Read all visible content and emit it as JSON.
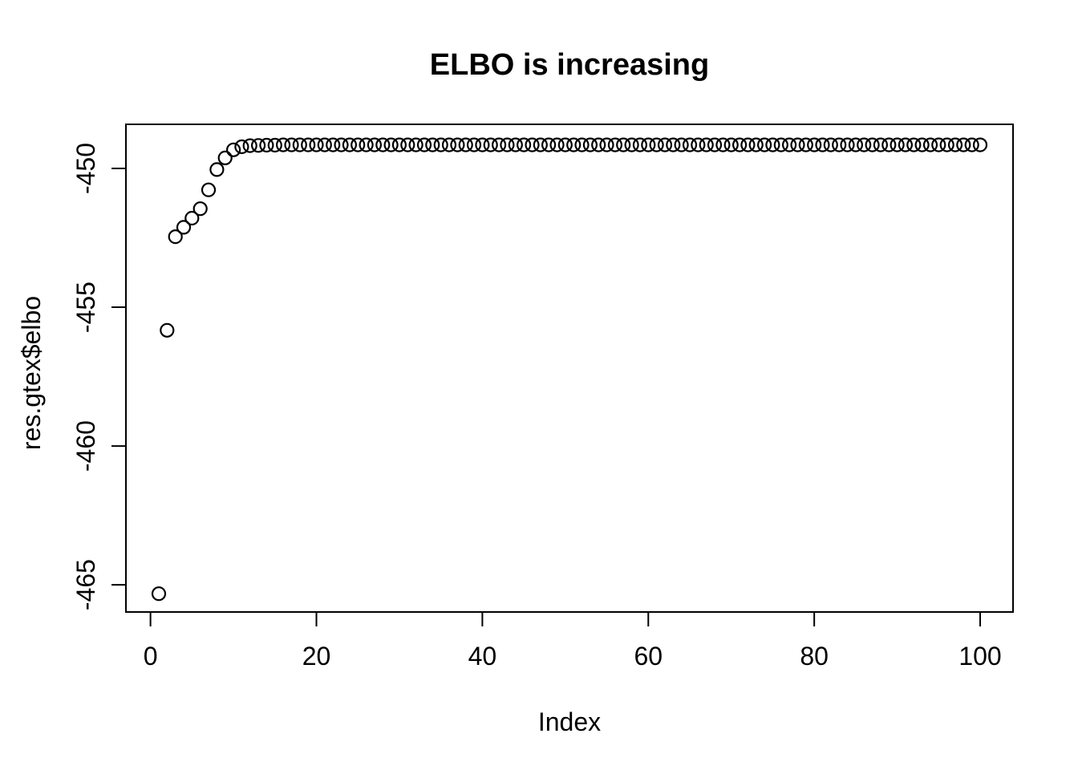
{
  "colors": {
    "foreground": "#000000",
    "background": "#ffffff"
  },
  "chart_data": {
    "type": "scatter",
    "title": "ELBO is increasing",
    "xlabel": "Index",
    "ylabel": "res.gtex$elbo",
    "point_style": "open-circle",
    "legend": "none",
    "grid": false,
    "x_ticks": [
      0,
      20,
      40,
      60,
      80,
      100
    ],
    "y_ticks": [
      -450,
      -455,
      -460,
      -465
    ],
    "xlim": [
      -2.96,
      103.96
    ],
    "ylim": [
      -465.98,
      -448.41
    ],
    "x": [
      1,
      2,
      3,
      4,
      5,
      6,
      7,
      8,
      9,
      10,
      11,
      12,
      13,
      14,
      15,
      16,
      17,
      18,
      19,
      20,
      21,
      22,
      23,
      24,
      25,
      26,
      27,
      28,
      29,
      30,
      31,
      32,
      33,
      34,
      35,
      36,
      37,
      38,
      39,
      40,
      41,
      42,
      43,
      44,
      45,
      46,
      47,
      48,
      49,
      50,
      51,
      52,
      53,
      54,
      55,
      56,
      57,
      58,
      59,
      60,
      61,
      62,
      63,
      64,
      65,
      66,
      67,
      68,
      69,
      70,
      71,
      72,
      73,
      74,
      75,
      76,
      77,
      78,
      79,
      80,
      81,
      82,
      83,
      84,
      85,
      86,
      87,
      88,
      89,
      90,
      91,
      92,
      93,
      94,
      95,
      96,
      97,
      98,
      99,
      100
    ],
    "y": [
      -465.32,
      -455.83,
      -452.46,
      -452.12,
      -451.79,
      -451.45,
      -450.77,
      -450.04,
      -449.62,
      -449.33,
      -449.22,
      -449.18,
      -449.17,
      -449.16,
      -449.16,
      -449.15,
      -449.15,
      -449.15,
      -449.15,
      -449.15,
      -449.15,
      -449.15,
      -449.15,
      -449.15,
      -449.15,
      -449.15,
      -449.15,
      -449.15,
      -449.15,
      -449.15,
      -449.15,
      -449.15,
      -449.15,
      -449.15,
      -449.15,
      -449.15,
      -449.15,
      -449.15,
      -449.15,
      -449.15,
      -449.15,
      -449.15,
      -449.15,
      -449.15,
      -449.15,
      -449.15,
      -449.15,
      -449.15,
      -449.15,
      -449.15,
      -449.15,
      -449.15,
      -449.15,
      -449.15,
      -449.15,
      -449.15,
      -449.15,
      -449.15,
      -449.15,
      -449.15,
      -449.15,
      -449.15,
      -449.15,
      -449.15,
      -449.15,
      -449.15,
      -449.15,
      -449.15,
      -449.15,
      -449.15,
      -449.15,
      -449.15,
      -449.15,
      -449.15,
      -449.15,
      -449.15,
      -449.15,
      -449.15,
      -449.15,
      -449.15,
      -449.15,
      -449.15,
      -449.15,
      -449.15,
      -449.15,
      -449.15,
      -449.15,
      -449.15,
      -449.15,
      -449.15,
      -449.15,
      -449.15,
      -449.15,
      -449.15,
      -449.15,
      -449.15,
      -449.15,
      -449.15,
      -449.15,
      -449.15
    ]
  }
}
